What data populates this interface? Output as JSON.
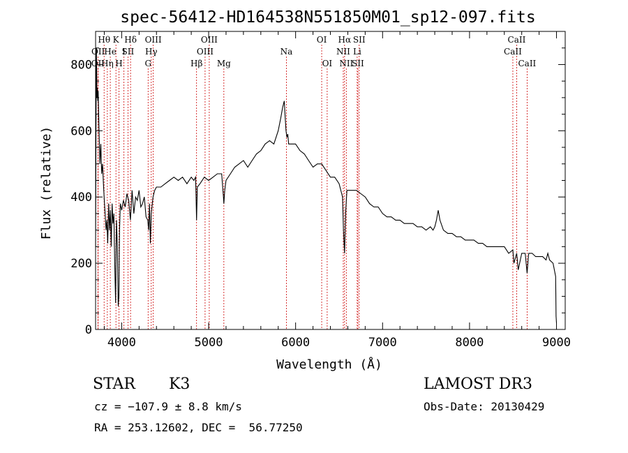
{
  "chart_data": {
    "type": "line",
    "title": "spec-56412-HD164538N551850M01_sp12-097.fits",
    "xlabel": "Wavelength (Å)",
    "ylabel": "Flux (relative)",
    "xlim": [
      3700,
      9100
    ],
    "ylim": [
      0,
      900
    ],
    "x_ticks": [
      4000,
      5000,
      6000,
      7000,
      8000,
      9000
    ],
    "x_tick_labels": [
      "4000",
      "5000",
      "6000",
      "7000",
      "8000",
      "9000"
    ],
    "y_ticks": [
      0,
      200,
      400,
      600,
      800
    ],
    "y_tick_labels": [
      "0",
      "200",
      "400",
      "600",
      "800"
    ],
    "series": [
      {
        "name": "spectrum",
        "x": [
          3700,
          3705,
          3710,
          3715,
          3720,
          3725,
          3730,
          3735,
          3740,
          3745,
          3750,
          3760,
          3770,
          3780,
          3790,
          3800,
          3810,
          3820,
          3830,
          3840,
          3850,
          3860,
          3870,
          3880,
          3890,
          3900,
          3910,
          3920,
          3930,
          3935,
          3940,
          3950,
          3960,
          3968,
          3975,
          3985,
          4000,
          4020,
          4040,
          4060,
          4080,
          4100,
          4120,
          4140,
          4160,
          4180,
          4200,
          4220,
          4240,
          4260,
          4280,
          4300,
          4310,
          4320,
          4330,
          4340,
          4360,
          4380,
          4400,
          4450,
          4500,
          4550,
          4600,
          4650,
          4700,
          4750,
          4800,
          4830,
          4850,
          4861,
          4870,
          4900,
          4950,
          5000,
          5050,
          5100,
          5150,
          5170,
          5175,
          5185,
          5200,
          5250,
          5300,
          5350,
          5400,
          5450,
          5500,
          5550,
          5600,
          5650,
          5700,
          5750,
          5800,
          5830,
          5850,
          5870,
          5880,
          5890,
          5900,
          5910,
          5920,
          5950,
          6000,
          6050,
          6100,
          6150,
          6200,
          6250,
          6300,
          6350,
          6400,
          6450,
          6500,
          6540,
          6550,
          6563,
          6575,
          6590,
          6650,
          6700,
          6750,
          6800,
          6850,
          6900,
          6950,
          7000,
          7050,
          7100,
          7150,
          7200,
          7250,
          7300,
          7350,
          7400,
          7450,
          7500,
          7550,
          7580,
          7600,
          7620,
          7640,
          7660,
          7700,
          7750,
          7800,
          7850,
          7900,
          7950,
          8000,
          8050,
          8100,
          8150,
          8200,
          8250,
          8300,
          8350,
          8400,
          8450,
          8498,
          8510,
          8542,
          8560,
          8600,
          8640,
          8662,
          8680,
          8720,
          8760,
          8800,
          8840,
          8880,
          8900,
          8920,
          8960,
          8990,
          8995,
          9000
        ],
        "y": [
          250,
          620,
          850,
          700,
          730,
          690,
          720,
          650,
          600,
          550,
          500,
          560,
          470,
          500,
          440,
          390,
          350,
          300,
          330,
          260,
          380,
          300,
          360,
          250,
          380,
          320,
          350,
          200,
          80,
          220,
          330,
          250,
          70,
          100,
          300,
          380,
          360,
          390,
          370,
          410,
          390,
          330,
          420,
          350,
          400,
          390,
          420,
          370,
          380,
          400,
          340,
          330,
          300,
          380,
          260,
          350,
          400,
          420,
          430,
          430,
          440,
          450,
          460,
          450,
          460,
          440,
          460,
          450,
          460,
          330,
          430,
          440,
          460,
          450,
          460,
          470,
          470,
          400,
          380,
          420,
          450,
          470,
          490,
          500,
          510,
          490,
          510,
          530,
          540,
          560,
          570,
          560,
          600,
          640,
          670,
          690,
          640,
          600,
          580,
          590,
          560,
          560,
          560,
          540,
          530,
          510,
          490,
          500,
          500,
          480,
          460,
          460,
          440,
          400,
          300,
          230,
          350,
          420,
          420,
          420,
          410,
          400,
          380,
          370,
          370,
          350,
          340,
          340,
          330,
          330,
          320,
          320,
          320,
          310,
          310,
          300,
          310,
          300,
          310,
          330,
          360,
          330,
          300,
          290,
          290,
          280,
          280,
          270,
          270,
          270,
          260,
          260,
          250,
          250,
          250,
          250,
          250,
          230,
          240,
          200,
          230,
          180,
          230,
          230,
          170,
          230,
          230,
          220,
          220,
          220,
          210,
          230,
          210,
          200,
          160,
          40,
          20
        ]
      }
    ],
    "annotations": [
      {
        "label": "OII",
        "wavelength": 3727,
        "row": 2
      },
      {
        "label": "OII",
        "wavelength": 3729,
        "row": 1
      },
      {
        "label": "Hθ",
        "wavelength": 3798,
        "row": 0
      },
      {
        "label": "Hη",
        "wavelength": 3835,
        "row": 2
      },
      {
        "label": "He",
        "wavelength": 3869,
        "row": 1
      },
      {
        "label": "K",
        "wavelength": 3934,
        "row": 0
      },
      {
        "label": "H",
        "wavelength": 3969,
        "row": 2
      },
      {
        "label": "I",
        "wavelength": 4026,
        "row": 1
      },
      {
        "label": "Hδ",
        "wavelength": 4102,
        "row": 0
      },
      {
        "label": "SII",
        "wavelength": 4072,
        "row": 1
      },
      {
        "label": "G",
        "wavelength": 4304,
        "row": 2
      },
      {
        "label": "Hγ",
        "wavelength": 4340,
        "row": 1
      },
      {
        "label": "OIII",
        "wavelength": 4363,
        "row": 0
      },
      {
        "label": "Hβ",
        "wavelength": 4861,
        "row": 2
      },
      {
        "label": "OIII",
        "wavelength": 4959,
        "row": 1
      },
      {
        "label": "OIII",
        "wavelength": 5007,
        "row": 0
      },
      {
        "label": "Mg",
        "wavelength": 5175,
        "row": 2
      },
      {
        "label": "Na",
        "wavelength": 5894,
        "row": 1
      },
      {
        "label": "OI",
        "wavelength": 6300,
        "row": 0
      },
      {
        "label": "OI",
        "wavelength": 6363,
        "row": 2
      },
      {
        "label": "NII",
        "wavelength": 6548,
        "row": 1
      },
      {
        "label": "Hα",
        "wavelength": 6563,
        "row": 0
      },
      {
        "label": "NII",
        "wavelength": 6583,
        "row": 2
      },
      {
        "label": "SII",
        "wavelength": 6716,
        "row": 2
      },
      {
        "label": "Li",
        "wavelength": 6708,
        "row": 1
      },
      {
        "label": "SII",
        "wavelength": 6731,
        "row": 0
      },
      {
        "label": "CaII",
        "wavelength": 8498,
        "row": 1
      },
      {
        "label": "CaII",
        "wavelength": 8542,
        "row": 0
      },
      {
        "label": "CaII",
        "wavelength": 8662,
        "row": 2
      }
    ],
    "line_color": "#000000",
    "marker_color": "#cc0000"
  },
  "info": {
    "object_class": "STAR",
    "subclass": "K3",
    "survey": "LAMOST DR3",
    "cz": "cz = −107.9 ± 8.8 km/s",
    "obs_date": "Obs-Date: 20130429",
    "coords": "RA = 253.12602, DEC =  56.77250"
  }
}
